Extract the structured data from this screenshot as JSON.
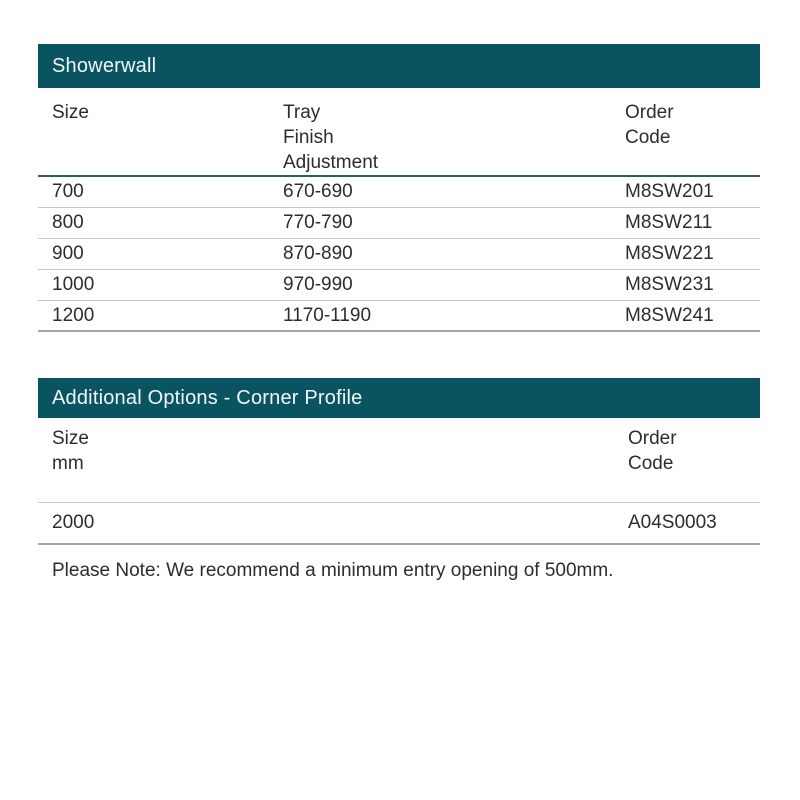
{
  "theme": {
    "header_bg": "#0a5462",
    "header_text": "#f2f7f8",
    "body_text": "#2d2d2d",
    "row_divider": "#c9c9c9",
    "header_divider": "#2f5a5e",
    "strong_divider": "#a6a6a6"
  },
  "showerwall": {
    "title": "Showerwall",
    "columns": {
      "size": [
        "Size"
      ],
      "tray": [
        "Tray",
        "Finish",
        "Adjustment"
      ],
      "order": [
        "Order",
        "Code"
      ]
    },
    "rows": [
      {
        "size": "700",
        "tray": "670-690",
        "order": "M8SW201"
      },
      {
        "size": "800",
        "tray": "770-790",
        "order": "M8SW211"
      },
      {
        "size": "900",
        "tray": "870-890",
        "order": "M8SW221"
      },
      {
        "size": "1000",
        "tray": "970-990",
        "order": "M8SW231"
      },
      {
        "size": "1200",
        "tray": "1170-1190",
        "order": "M8SW241"
      }
    ]
  },
  "corner_profile": {
    "title": "Additional Options - Corner Profile",
    "columns": {
      "size": [
        "Size",
        "mm"
      ],
      "order": [
        "Order",
        "Code"
      ]
    },
    "rows": [
      {
        "size": "2000",
        "order": "A04S0003"
      }
    ],
    "note": "Please Note: We recommend a minimum entry opening of 500mm."
  }
}
